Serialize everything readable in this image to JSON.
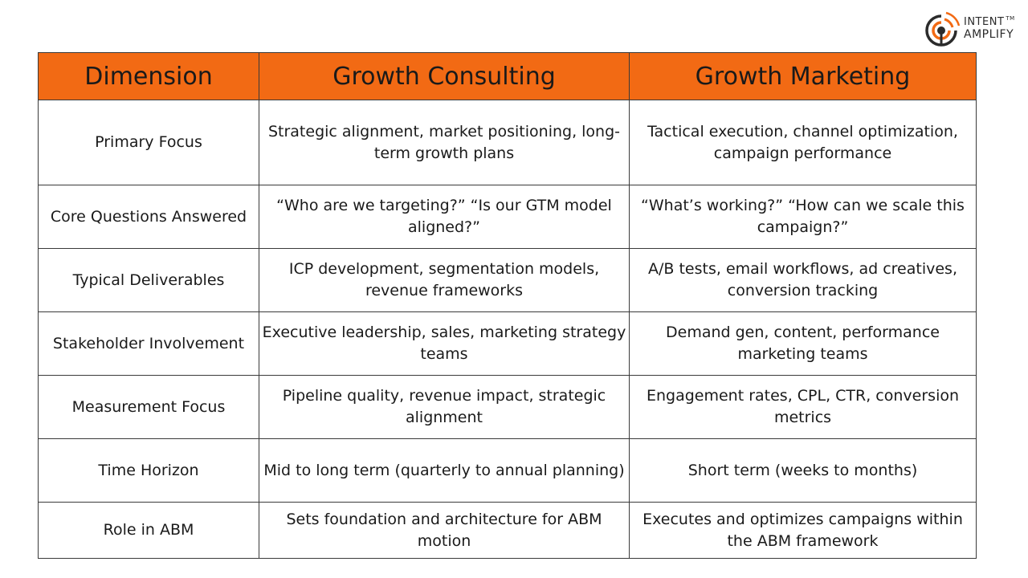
{
  "logo": {
    "line1": "Intent",
    "tm": "TM",
    "line2": "Amplify",
    "colors": {
      "accent": "#f26a14",
      "dark": "#2b2b2b"
    }
  },
  "table": {
    "header_color": "#f26a14",
    "headers": [
      "Dimension",
      "Growth Consulting",
      "Growth Marketing"
    ],
    "rows": [
      {
        "dimension": "Primary Focus",
        "consulting": "Strategic alignment, market positioning, long-term growth plans",
        "marketing": "Tactical execution, channel optimization, campaign performance"
      },
      {
        "dimension": "Core Questions Answered",
        "consulting": "“Who are we targeting?” “Is our GTM model aligned?”",
        "marketing": "“What’s working?” “How can we scale this campaign?”"
      },
      {
        "dimension": "Typical Deliverables",
        "consulting": "ICP development, segmentation models, revenue frameworks",
        "marketing": "A/B tests, email workflows, ad creatives, conversion tracking"
      },
      {
        "dimension": "Stakeholder Involvement",
        "consulting": "Executive leadership, sales, marketing strategy teams",
        "marketing": "Demand gen, content, performance marketing teams"
      },
      {
        "dimension": "Measurement Focus",
        "consulting": "Pipeline quality, revenue impact, strategic alignment",
        "marketing": "Engagement rates, CPL, CTR, conversion metrics"
      },
      {
        "dimension": "Time Horizon",
        "consulting": "Mid to long term (quarterly to annual planning)",
        "marketing": "Short term (weeks to months)"
      },
      {
        "dimension": "Role in ABM",
        "consulting": "Sets foundation and architecture for ABM motion",
        "marketing": "Executes and optimizes campaigns within the ABM framework"
      }
    ]
  }
}
